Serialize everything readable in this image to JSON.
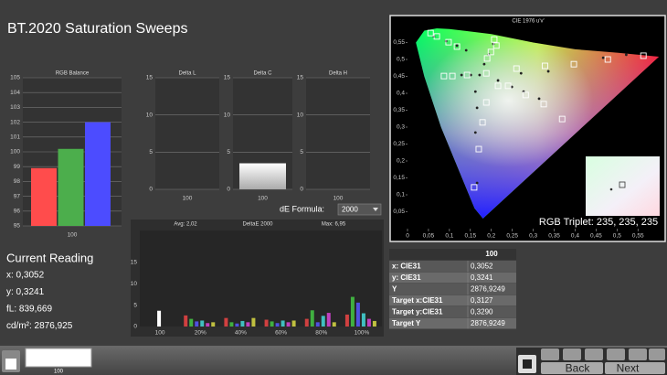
{
  "header": {
    "title": "BT.2020 Saturation Sweeps"
  },
  "rgb_balance": {
    "title": "RGB Balance",
    "categories": [
      "100"
    ],
    "values": [
      98.9,
      100.2,
      102.0
    ],
    "colors": [
      "#ff4c4c",
      "#4cae4c",
      "#4c4cff"
    ],
    "ylim": [
      95,
      105
    ],
    "yticks": [
      95,
      96,
      97,
      98,
      99,
      100,
      101,
      102,
      103,
      104,
      105
    ]
  },
  "delta_l": {
    "title": "Delta L",
    "categories": [
      "100"
    ],
    "ylim": [
      0,
      15
    ],
    "yticks": [
      0,
      5,
      10,
      15
    ]
  },
  "delta_c": {
    "title": "Delta C",
    "categories": [
      "100"
    ],
    "values": [
      3.5
    ],
    "ylim": [
      0,
      15
    ],
    "yticks": [
      0,
      5,
      10,
      15
    ]
  },
  "delta_h": {
    "title": "Delta H",
    "categories": [
      "100"
    ],
    "ylim": [
      0,
      15
    ],
    "yticks": [
      0,
      5,
      10,
      15
    ]
  },
  "de_formula": {
    "label": "dE Formula:",
    "selected": "2000"
  },
  "delta_e": {
    "title": "DeltaE 2000",
    "avg": "Avg: 2,02",
    "max": "Max: 6,95",
    "categories": [
      "100",
      "20%",
      "40%",
      "60%",
      "80%",
      "100%"
    ],
    "ylim": [
      0,
      22.5
    ],
    "yticks": [
      0,
      5,
      10,
      15
    ],
    "series": [
      {
        "color": "#ffffff",
        "values": [
          3.7,
          null,
          null,
          null,
          null,
          null
        ]
      },
      {
        "color": "#d04040",
        "values": [
          null,
          2.6,
          2.0,
          1.6,
          1.8,
          2.8
        ]
      },
      {
        "color": "#40b040",
        "values": [
          null,
          1.8,
          1.0,
          1.2,
          3.8,
          6.95
        ]
      },
      {
        "color": "#5050e0",
        "values": [
          null,
          1.2,
          0.7,
          0.8,
          1.0,
          5.6
        ]
      },
      {
        "color": "#40c0c0",
        "values": [
          null,
          1.4,
          1.3,
          1.4,
          2.5,
          3.1
        ]
      },
      {
        "color": "#c040c0",
        "values": [
          null,
          0.8,
          1.0,
          1.0,
          3.2,
          1.8
        ]
      },
      {
        "color": "#c0c040",
        "values": [
          null,
          1.0,
          2.0,
          1.4,
          1.0,
          1.3
        ]
      }
    ]
  },
  "cie": {
    "title": "CIE 1976 u'v'",
    "triplet": "RGB Triplet: 235, 235, 235",
    "xlim": [
      0,
      0.58
    ],
    "ylim": [
      0,
      0.6
    ],
    "xticks": [
      0,
      {
        "value": 0.05,
        "label": "0,05"
      },
      {
        "value": 0.1,
        "label": "0,1"
      },
      {
        "value": 0.15,
        "label": "0,15"
      },
      {
        "value": 0.2,
        "label": "0,2"
      },
      {
        "value": 0.25,
        "label": "0,25"
      },
      {
        "value": 0.3,
        "label": "0,3"
      },
      {
        "value": 0.35,
        "label": "0,35"
      },
      {
        "value": 0.4,
        "label": "0,4"
      },
      {
        "value": 0.45,
        "label": "0,45"
      },
      {
        "value": 0.5,
        "label": "0,5"
      },
      {
        "value": 0.55,
        "label": "0,55"
      }
    ],
    "yticks": [
      {
        "value": 0.05,
        "label": "0,05"
      },
      {
        "value": 0.1,
        "label": "0,1"
      },
      {
        "value": 0.15,
        "label": "0,15"
      },
      {
        "value": 0.2,
        "label": "0,2"
      },
      {
        "value": 0.25,
        "label": "0,25"
      },
      {
        "value": 0.3,
        "label": "0,3"
      },
      {
        "value": 0.35,
        "label": "0,35"
      },
      {
        "value": 0.4,
        "label": "0,4"
      },
      {
        "value": 0.45,
        "label": "0,45"
      },
      {
        "value": 0.5,
        "label": "0,5"
      },
      {
        "value": 0.55,
        "label": "0,55"
      }
    ],
    "targets": {
      "u": [
        0.055,
        0.07,
        0.098,
        0.118,
        0.207,
        0.212,
        0.199,
        0.19,
        0.26,
        0.328,
        0.397,
        0.478,
        0.563,
        0.087,
        0.107,
        0.142,
        0.188,
        0.216,
        0.24,
        0.282,
        0.325,
        0.369,
        0.188,
        0.179,
        0.17,
        0.159
      ],
      "v": [
        0.578,
        0.568,
        0.551,
        0.538,
        0.559,
        0.541,
        0.522,
        0.503,
        0.473,
        0.481,
        0.486,
        0.5,
        0.511,
        0.451,
        0.451,
        0.454,
        0.459,
        0.422,
        0.422,
        0.395,
        0.368,
        0.324,
        0.373,
        0.314,
        0.235,
        0.122
      ]
    },
    "measured": {
      "u": [
        0.063,
        0.092,
        0.118,
        0.14,
        0.205,
        0.194,
        0.183,
        0.129,
        0.151,
        0.172,
        0.216,
        0.249,
        0.277,
        0.314,
        0.162,
        0.166,
        0.162,
        0.166,
        0.467,
        0.522,
        0.271,
        0.336
      ],
      "v": [
        0.568,
        0.554,
        0.541,
        0.527,
        0.546,
        0.514,
        0.486,
        0.454,
        0.454,
        0.454,
        0.438,
        0.419,
        0.405,
        0.384,
        0.405,
        0.357,
        0.284,
        0.135,
        0.505,
        0.514,
        0.459,
        0.465
      ]
    }
  },
  "current_reading": {
    "title": "Current Reading",
    "lines": [
      "x: 0,3052",
      "y: 0,3241",
      "fL: 839,669",
      "cd/m²: 2876,925"
    ]
  },
  "table": {
    "header": "100",
    "rows": [
      [
        "x: CIE31",
        "0,3052"
      ],
      [
        "y: CIE31",
        "0,3241"
      ],
      [
        "Y",
        "2876,9249"
      ],
      [
        "Target x:CIE31",
        "0,3127"
      ],
      [
        "Target y:CIE31",
        "0,3290"
      ],
      [
        "Target Y",
        "2876,9249"
      ]
    ]
  },
  "toolbar": {
    "thumbnail": "100",
    "back": "Back",
    "next": "Next"
  }
}
